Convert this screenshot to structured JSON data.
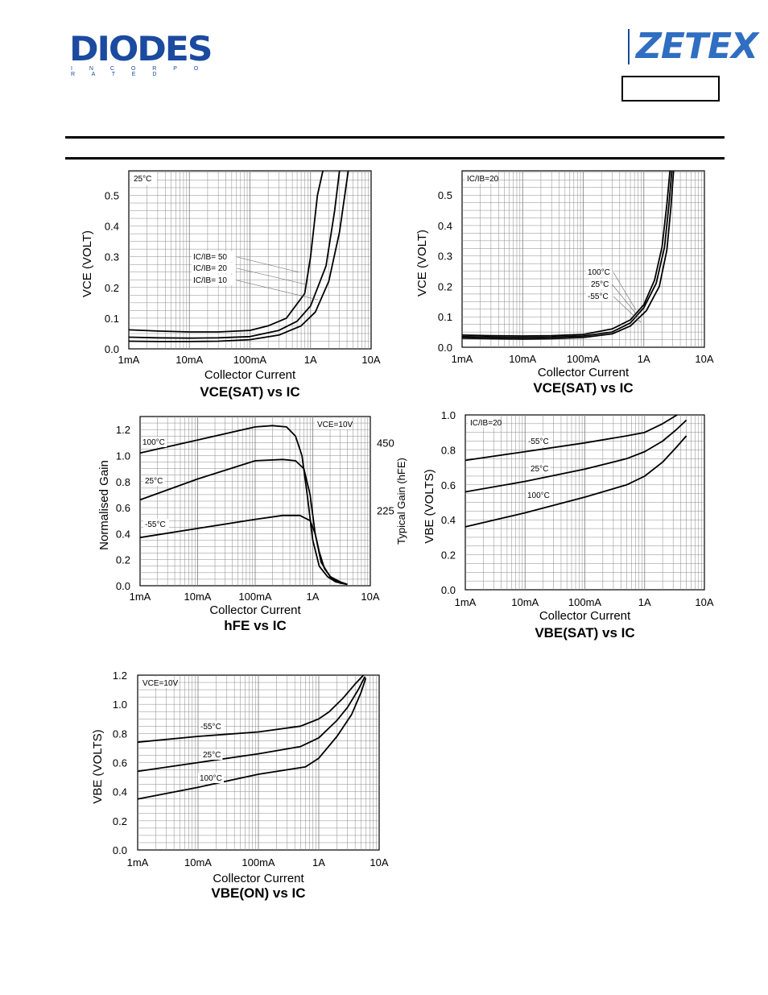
{
  "header": {
    "logo_left": "DIODES",
    "logo_left_sub": "I N C O R P O R A T E D",
    "logo_right": "ZETEX",
    "part_number": ""
  },
  "colors": {
    "brand_blue": "#1b4aa0",
    "zetex_blue": "#2f6ec1",
    "grid": "#888888",
    "curve": "#000000"
  },
  "chart_data": [
    {
      "type": "line",
      "xscale": "log",
      "x_ticks": [
        "1mA",
        "10mA",
        "100mA",
        "1A",
        "10A"
      ],
      "xlim": [
        0.001,
        10
      ],
      "y_ticks": [
        "0.0",
        "0.1",
        "0.2",
        "0.3",
        "0.4",
        "0.5"
      ],
      "ylim": [
        0,
        0.58
      ],
      "ylabel": "VCE (VOLT)",
      "xlabel": "Collector Current",
      "caption": "VCE(SAT) vs IC",
      "corner_label": "25°C",
      "annotations": [
        "IC/IB= 50",
        "IC/IB= 20",
        "IC/IB= 10"
      ],
      "series": [
        {
          "name": "IC/IB= 50",
          "x": [
            0.001,
            0.003,
            0.01,
            0.03,
            0.1,
            0.2,
            0.4,
            0.8,
            1.0,
            1.3,
            1.6
          ],
          "y": [
            0.062,
            0.058,
            0.055,
            0.055,
            0.06,
            0.075,
            0.1,
            0.18,
            0.3,
            0.5,
            0.58
          ]
        },
        {
          "name": "IC/IB= 20",
          "x": [
            0.001,
            0.003,
            0.01,
            0.03,
            0.1,
            0.3,
            0.6,
            1.0,
            1.8,
            2.5,
            3.0
          ],
          "y": [
            0.038,
            0.036,
            0.035,
            0.036,
            0.04,
            0.06,
            0.09,
            0.14,
            0.27,
            0.45,
            0.58
          ]
        },
        {
          "name": "IC/IB= 10",
          "x": [
            0.001,
            0.003,
            0.01,
            0.03,
            0.1,
            0.3,
            0.7,
            1.2,
            2.0,
            3.0,
            4.2
          ],
          "y": [
            0.025,
            0.024,
            0.024,
            0.025,
            0.03,
            0.045,
            0.075,
            0.12,
            0.22,
            0.38,
            0.58
          ]
        }
      ]
    },
    {
      "type": "line",
      "xscale": "log",
      "x_ticks": [
        "1mA",
        "10mA",
        "100mA",
        "1A",
        "10A"
      ],
      "xlim": [
        0.001,
        10
      ],
      "y_ticks": [
        "0.0",
        "0.1",
        "0.2",
        "0.3",
        "0.4",
        "0.5"
      ],
      "ylim": [
        0,
        0.58
      ],
      "ylabel": "VCE (VOLT)",
      "xlabel": "Collector Current",
      "caption": "VCE(SAT) vs IC",
      "corner_label": "IC/IB=20",
      "annotations": [
        "100°C",
        "25°C",
        "-55°C"
      ],
      "series": [
        {
          "name": "100°C",
          "x": [
            0.001,
            0.003,
            0.01,
            0.03,
            0.1,
            0.3,
            0.6,
            1.0,
            1.5,
            2.0,
            2.4,
            2.7
          ],
          "y": [
            0.04,
            0.038,
            0.037,
            0.038,
            0.042,
            0.06,
            0.09,
            0.14,
            0.22,
            0.33,
            0.47,
            0.58
          ]
        },
        {
          "name": "25°C",
          "x": [
            0.001,
            0.003,
            0.01,
            0.03,
            0.1,
            0.3,
            0.6,
            1.0,
            1.6,
            2.2,
            2.6,
            2.9
          ],
          "y": [
            0.035,
            0.033,
            0.032,
            0.033,
            0.037,
            0.05,
            0.08,
            0.13,
            0.21,
            0.33,
            0.47,
            0.58
          ]
        },
        {
          "name": "-55°C",
          "x": [
            0.001,
            0.003,
            0.01,
            0.03,
            0.1,
            0.3,
            0.6,
            1.1,
            1.8,
            2.4,
            2.8,
            3.1
          ],
          "y": [
            0.03,
            0.028,
            0.027,
            0.028,
            0.032,
            0.044,
            0.07,
            0.12,
            0.2,
            0.32,
            0.46,
            0.58
          ]
        }
      ]
    },
    {
      "type": "line",
      "xscale": "log",
      "x_ticks": [
        "1mA",
        "10mA",
        "100mA",
        "1A",
        "10A"
      ],
      "xlim": [
        0.001,
        10
      ],
      "y_ticks": [
        "0.0",
        "0.2",
        "0.4",
        "0.6",
        "0.8",
        "1.0",
        "1.2"
      ],
      "ylim": [
        0,
        1.3
      ],
      "y2_ticks": [
        "225",
        "450"
      ],
      "ylabel": "Normalised Gain",
      "y2label": "Typical Gain (hFE)",
      "xlabel": "Collector Current",
      "caption": "hFE vs IC",
      "corner_label": "VCE=10V",
      "annotations": [
        "100°C",
        "25°C",
        "-55°C"
      ],
      "series": [
        {
          "name": "100°C",
          "x": [
            0.001,
            0.01,
            0.1,
            0.2,
            0.35,
            0.5,
            0.65,
            0.8,
            1.0,
            1.3,
            1.8,
            2.5,
            4.0
          ],
          "y": [
            1.02,
            1.12,
            1.22,
            1.23,
            1.22,
            1.15,
            1.0,
            0.7,
            0.35,
            0.15,
            0.07,
            0.03,
            0.01
          ]
        },
        {
          "name": "25°C",
          "x": [
            0.001,
            0.01,
            0.1,
            0.3,
            0.5,
            0.7,
            0.9,
            1.1,
            1.4,
            2.0,
            3.0,
            4.0
          ],
          "y": [
            0.66,
            0.82,
            0.96,
            0.97,
            0.96,
            0.9,
            0.7,
            0.4,
            0.18,
            0.07,
            0.03,
            0.01
          ]
        },
        {
          "name": "-55°C",
          "x": [
            0.001,
            0.01,
            0.1,
            0.3,
            0.6,
            0.9,
            1.1,
            1.3,
            1.6,
            2.2,
            3.0,
            4.0
          ],
          "y": [
            0.37,
            0.44,
            0.51,
            0.54,
            0.54,
            0.5,
            0.4,
            0.26,
            0.13,
            0.05,
            0.02,
            0.01
          ]
        }
      ]
    },
    {
      "type": "line",
      "xscale": "log",
      "x_ticks": [
        "1mA",
        "10mA",
        "100mA",
        "1A",
        "10A"
      ],
      "xlim": [
        0.001,
        10
      ],
      "y_ticks": [
        "0.0",
        "0.2",
        "0.4",
        "0.6",
        "0.8",
        "1.0"
      ],
      "ylim": [
        0,
        1.0
      ],
      "ylabel": "VBE (VOLTS)",
      "xlabel": "Collector Current",
      "caption": "VBE(SAT) vs IC",
      "corner_label": "IC/IB=20",
      "annotations": [
        "-55°C",
        "25°C",
        "100°C"
      ],
      "series": [
        {
          "name": "-55°C",
          "x": [
            0.001,
            0.01,
            0.1,
            0.5,
            1.0,
            2.0,
            3.5
          ],
          "y": [
            0.74,
            0.79,
            0.84,
            0.88,
            0.9,
            0.95,
            1.0
          ]
        },
        {
          "name": "25°C",
          "x": [
            0.001,
            0.01,
            0.1,
            0.5,
            1.0,
            2.0,
            3.5,
            5.0
          ],
          "y": [
            0.56,
            0.62,
            0.69,
            0.75,
            0.79,
            0.85,
            0.92,
            0.97
          ]
        },
        {
          "name": "100°C",
          "x": [
            0.001,
            0.01,
            0.1,
            0.5,
            1.0,
            2.0,
            3.5,
            5.0
          ],
          "y": [
            0.36,
            0.44,
            0.53,
            0.6,
            0.65,
            0.73,
            0.82,
            0.88
          ]
        }
      ]
    },
    {
      "type": "line",
      "xscale": "log",
      "x_ticks": [
        "1mA",
        "10mA",
        "100mA",
        "1A",
        "10A"
      ],
      "xlim": [
        0.001,
        10
      ],
      "y_ticks": [
        "0.0",
        "0.2",
        "0.4",
        "0.6",
        "0.8",
        "1.0",
        "1.2"
      ],
      "ylim": [
        0,
        1.2
      ],
      "ylabel": "VBE (VOLTS)",
      "xlabel": "Collector Current",
      "caption": "VBE(ON) vs IC",
      "corner_label": "VCE=10V",
      "annotations": [
        "-55°C",
        "25°C",
        "100°C"
      ],
      "series": [
        {
          "name": "-55°C",
          "x": [
            0.001,
            0.01,
            0.1,
            0.5,
            1.0,
            1.5,
            2.5,
            4.0,
            5.5
          ],
          "y": [
            0.74,
            0.78,
            0.81,
            0.85,
            0.9,
            0.95,
            1.04,
            1.14,
            1.2
          ]
        },
        {
          "name": "25°C",
          "x": [
            0.001,
            0.01,
            0.1,
            0.5,
            1.0,
            2.0,
            3.0,
            4.5,
            5.8
          ],
          "y": [
            0.54,
            0.6,
            0.66,
            0.71,
            0.77,
            0.89,
            0.98,
            1.1,
            1.19
          ]
        },
        {
          "name": "100°C",
          "x": [
            0.001,
            0.01,
            0.1,
            0.6,
            1.0,
            2.0,
            3.5,
            5.0,
            6.0
          ],
          "y": [
            0.35,
            0.43,
            0.52,
            0.57,
            0.63,
            0.78,
            0.93,
            1.08,
            1.18
          ]
        }
      ]
    }
  ]
}
